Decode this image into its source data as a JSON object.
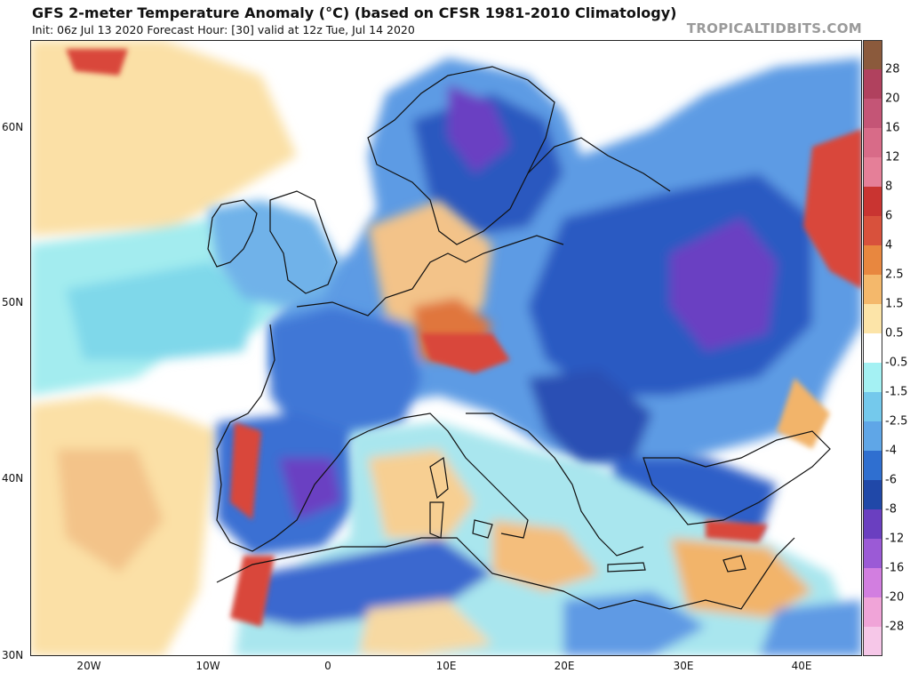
{
  "header": {
    "title": "GFS 2-meter Temperature Anomaly (°C) (based on CFSR 1981-2010 Climatology)",
    "subtitle": "Init: 06z Jul 13 2020   Forecast Hour: [30]   valid at 12z Tue, Jul 14 2020",
    "credit": "TROPICALTIDBITS.COM"
  },
  "map": {
    "lat_labels": [
      "60N",
      "50N",
      "40N",
      "30N"
    ],
    "lon_labels": [
      "20W",
      "10W",
      "0",
      "10E",
      "20E",
      "30E",
      "40E"
    ]
  },
  "colorbar": {
    "labels": [
      "28",
      "20",
      "16",
      "12",
      "8",
      "6",
      "4",
      "2.5",
      "1.5",
      "0.5",
      "-0.5",
      "-1.5",
      "-2.5",
      "-4",
      "-6",
      "-8",
      "-12",
      "-16",
      "-20",
      "-28"
    ],
    "colors": [
      "#8b5a3c",
      "#b0415e",
      "#c45576",
      "#d86b88",
      "#e57f98",
      "#c93431",
      "#d8513c",
      "#e8873f",
      "#f4b86b",
      "#fce4a8",
      "#ffffff",
      "#a4f1f3",
      "#74c9ec",
      "#5fa6e7",
      "#2f6fd0",
      "#2048a8",
      "#6a3fc0",
      "#9b5ad6",
      "#d27ee0",
      "#f0a4d8",
      "#f6c7e8"
    ]
  },
  "colors": {
    "ocean_neutral": "#ffffff",
    "slight_cool": "#9fecef",
    "cool": "#5f9fe4",
    "cold": "#2a58bf",
    "very_cold": "#6b3fc2",
    "slight_warm": "#fbe0a6",
    "warm": "#f2b46b",
    "hot": "#d9463a",
    "very_hot": "#b5404f",
    "coastline": "#111111"
  }
}
